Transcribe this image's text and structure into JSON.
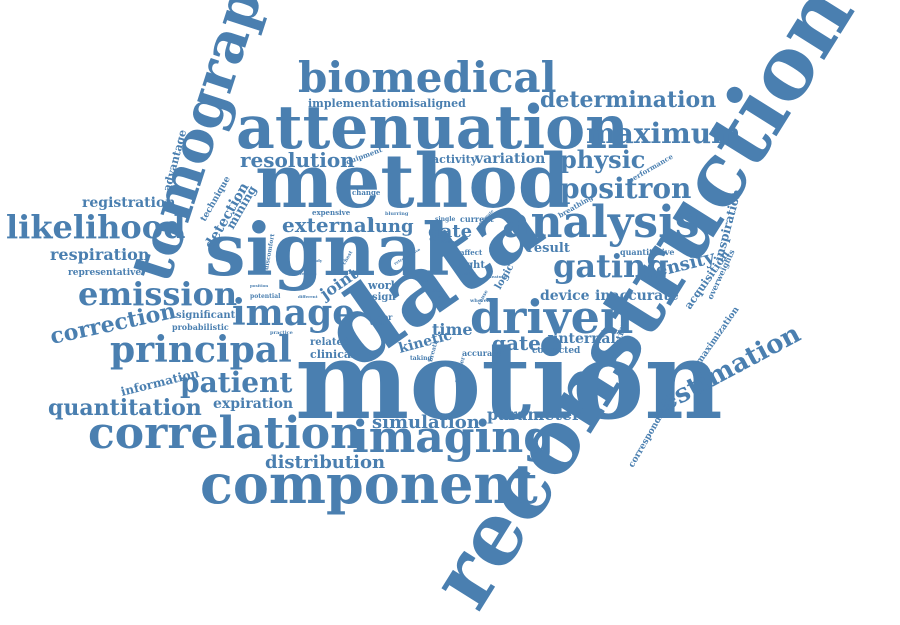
{
  "word_cloud": {
    "color": "#4a7fb0",
    "words": {
      "reconstruction": "reconstruction",
      "motion": "motion",
      "data": "data",
      "method": "method",
      "signal": "signal",
      "attenuation": "attenuation",
      "tomography": "tomography",
      "component": "component",
      "biomedical": "biomedical",
      "correlation": "correlation",
      "imaging": "imaging",
      "driven": "driven",
      "analysis": "analysis",
      "principal": "principal",
      "likelihood": "likelihood",
      "emission": "emission",
      "image": "image",
      "maximum": "maximum",
      "positron": "positron",
      "gating": "gating",
      "physic": "physic",
      "determination": "determination",
      "patient": "patient",
      "estimation": "estimation",
      "quantitation": "quantitation",
      "correction": "correction",
      "resolution": "resolution",
      "distribution": "distribution",
      "respiration": "respiration",
      "registration": "registration",
      "external": "external",
      "parameter": "parameter",
      "simulation": "simulation",
      "gated": "gated",
      "lung": "lung",
      "gate": "gate",
      "density": "density",
      "time": "time",
      "device": "device",
      "inaccurate": "inaccurate",
      "variation": "variation",
      "activity": "activity",
      "implementation": "implementation",
      "misaligned": "misaligned",
      "expiration": "expiration",
      "internal": "internal",
      "result": "result",
      "kinetic": "kinetic",
      "joint": "joint",
      "advantage": "advantage",
      "detection": "detection",
      "mining": "mining",
      "technique": "technique",
      "information": "information",
      "representative": "representative",
      "significant": "significant",
      "probabilistic": "probabilistic",
      "inspiration": "inspiration",
      "acquisition": "acquisition",
      "maximization": "maximization",
      "corresponding": "corresponding",
      "overweights": "overweights",
      "direction": "direction",
      "related": "related",
      "clinical": "clinical",
      "corrected": "corrected",
      "accuracy": "accuracy",
      "flight": "flight",
      "logic": "logic",
      "quantitative": "quantitative",
      "performance": "performance",
      "breathing": "breathing",
      "equipment": "equipment",
      "change": "change",
      "expensive": "expensive",
      "discomfort": "discomfort",
      "blurring": "blurring",
      "single": "single",
      "current": "current",
      "affect": "affect",
      "lower": "lower",
      "work": "work",
      "sign": "sign",
      "prior": "prior",
      "whole": "whole",
      "scanner": "scanner",
      "breath": "breath",
      "taking": "taking",
      "whereas": "whereas",
      "cause": "cause",
      "potential": "potential",
      "practice": "practice",
      "position": "position",
      "different": "different",
      "study": "study",
      "chest": "chest",
      "respect": "respect",
      "fidelity": "fidelity",
      "retrospective": "retrospective",
      "tacs": "tacs",
      "step": "step",
      "raw": "raw",
      "estimate": "estimate",
      "feature": "feature"
    }
  }
}
